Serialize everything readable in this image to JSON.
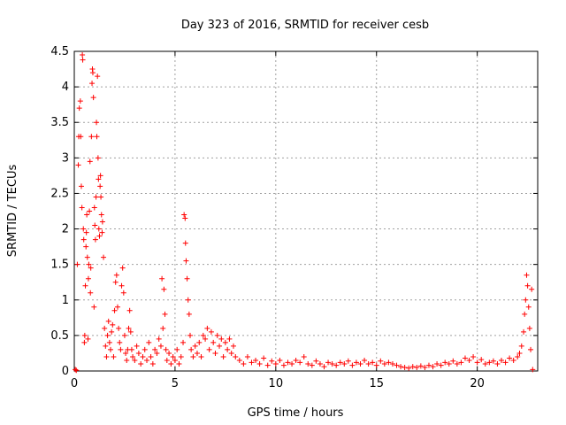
{
  "chart_data": {
    "type": "scatter",
    "title": "Day 323 of 2016, SRMTID for receiver cesb",
    "xlabel": "GPS time / hours",
    "ylabel": "SRMTID / TECUs",
    "xlim": [
      0,
      23
    ],
    "ylim": [
      0,
      4.5
    ],
    "xticks": [
      0,
      5,
      10,
      15,
      20
    ],
    "yticks": [
      0,
      0.5,
      1,
      1.5,
      2,
      2.5,
      3,
      3.5,
      4,
      4.5
    ],
    "grid": true,
    "marker": "+",
    "color": "#ff0000",
    "series": [
      {
        "name": "SRMTID",
        "points": [
          [
            0.05,
            0.02
          ],
          [
            0.1,
            0.01
          ],
          [
            0.15,
            1.5
          ],
          [
            0.2,
            2.9
          ],
          [
            0.22,
            3.3
          ],
          [
            0.25,
            3.7
          ],
          [
            0.3,
            3.8
          ],
          [
            0.32,
            3.3
          ],
          [
            0.35,
            2.6
          ],
          [
            0.38,
            2.3
          ],
          [
            0.4,
            4.45
          ],
          [
            0.42,
            4.38
          ],
          [
            0.45,
            2.0
          ],
          [
            0.47,
            1.85
          ],
          [
            0.5,
            0.4
          ],
          [
            0.52,
            0.5
          ],
          [
            0.55,
            1.2
          ],
          [
            0.58,
            1.75
          ],
          [
            0.6,
            1.95
          ],
          [
            0.62,
            2.2
          ],
          [
            0.65,
            1.6
          ],
          [
            0.68,
            0.45
          ],
          [
            0.7,
            1.3
          ],
          [
            0.72,
            1.5
          ],
          [
            0.75,
            2.25
          ],
          [
            0.78,
            2.95
          ],
          [
            0.8,
            1.1
          ],
          [
            0.82,
            1.45
          ],
          [
            0.85,
            3.3
          ],
          [
            0.88,
            4.05
          ],
          [
            0.9,
            4.25
          ],
          [
            0.92,
            4.2
          ],
          [
            0.95,
            3.85
          ],
          [
            0.98,
            0.9
          ],
          [
            1.0,
            2.3
          ],
          [
            1.02,
            2.05
          ],
          [
            1.05,
            1.85
          ],
          [
            1.08,
            2.45
          ],
          [
            1.1,
            3.5
          ],
          [
            1.12,
            3.3
          ],
          [
            1.15,
            4.15
          ],
          [
            1.18,
            3.0
          ],
          [
            1.2,
            2.7
          ],
          [
            1.22,
            2.0
          ],
          [
            1.25,
            1.9
          ],
          [
            1.28,
            2.6
          ],
          [
            1.3,
            2.75
          ],
          [
            1.32,
            2.45
          ],
          [
            1.35,
            2.2
          ],
          [
            1.38,
            1.95
          ],
          [
            1.4,
            2.1
          ],
          [
            1.45,
            1.6
          ],
          [
            1.5,
            0.6
          ],
          [
            1.55,
            0.35
          ],
          [
            1.6,
            0.2
          ],
          [
            1.65,
            0.5
          ],
          [
            1.7,
            0.7
          ],
          [
            1.75,
            0.4
          ],
          [
            1.8,
            0.3
          ],
          [
            1.85,
            0.55
          ],
          [
            1.9,
            0.65
          ],
          [
            1.95,
            0.2
          ],
          [
            2.0,
            0.85
          ],
          [
            2.05,
            1.25
          ],
          [
            2.1,
            1.35
          ],
          [
            2.15,
            0.9
          ],
          [
            2.2,
            0.6
          ],
          [
            2.25,
            0.4
          ],
          [
            2.3,
            0.3
          ],
          [
            2.35,
            1.2
          ],
          [
            2.4,
            1.45
          ],
          [
            2.45,
            1.1
          ],
          [
            2.5,
            0.5
          ],
          [
            2.55,
            0.25
          ],
          [
            2.6,
            0.15
          ],
          [
            2.65,
            0.3
          ],
          [
            2.7,
            0.6
          ],
          [
            2.75,
            0.85
          ],
          [
            2.8,
            0.55
          ],
          [
            2.85,
            0.3
          ],
          [
            2.9,
            0.2
          ],
          [
            3.0,
            0.15
          ],
          [
            3.1,
            0.35
          ],
          [
            3.2,
            0.25
          ],
          [
            3.3,
            0.1
          ],
          [
            3.4,
            0.2
          ],
          [
            3.5,
            0.3
          ],
          [
            3.6,
            0.15
          ],
          [
            3.7,
            0.4
          ],
          [
            3.8,
            0.2
          ],
          [
            3.9,
            0.1
          ],
          [
            4.0,
            0.3
          ],
          [
            4.1,
            0.25
          ],
          [
            4.2,
            0.45
          ],
          [
            4.3,
            0.35
          ],
          [
            4.35,
            1.3
          ],
          [
            4.4,
            0.6
          ],
          [
            4.45,
            1.15
          ],
          [
            4.5,
            0.8
          ],
          [
            4.55,
            0.3
          ],
          [
            4.6,
            0.15
          ],
          [
            4.7,
            0.25
          ],
          [
            4.8,
            0.1
          ],
          [
            4.9,
            0.2
          ],
          [
            5.0,
            0.15
          ],
          [
            5.1,
            0.3
          ],
          [
            5.2,
            0.1
          ],
          [
            5.3,
            0.2
          ],
          [
            5.4,
            0.4
          ],
          [
            5.45,
            2.2
          ],
          [
            5.5,
            2.15
          ],
          [
            5.52,
            1.8
          ],
          [
            5.55,
            1.55
          ],
          [
            5.6,
            1.3
          ],
          [
            5.65,
            1.0
          ],
          [
            5.7,
            0.8
          ],
          [
            5.75,
            0.5
          ],
          [
            5.8,
            0.3
          ],
          [
            5.9,
            0.2
          ],
          [
            6.0,
            0.35
          ],
          [
            6.1,
            0.25
          ],
          [
            6.2,
            0.4
          ],
          [
            6.3,
            0.2
          ],
          [
            6.4,
            0.5
          ],
          [
            6.5,
            0.45
          ],
          [
            6.6,
            0.6
          ],
          [
            6.7,
            0.3
          ],
          [
            6.8,
            0.55
          ],
          [
            6.9,
            0.4
          ],
          [
            7.0,
            0.25
          ],
          [
            7.1,
            0.5
          ],
          [
            7.2,
            0.35
          ],
          [
            7.3,
            0.45
          ],
          [
            7.4,
            0.2
          ],
          [
            7.5,
            0.4
          ],
          [
            7.6,
            0.3
          ],
          [
            7.7,
            0.45
          ],
          [
            7.8,
            0.25
          ],
          [
            7.9,
            0.35
          ],
          [
            8.0,
            0.2
          ],
          [
            8.2,
            0.15
          ],
          [
            8.4,
            0.1
          ],
          [
            8.6,
            0.2
          ],
          [
            8.8,
            0.12
          ],
          [
            9.0,
            0.15
          ],
          [
            9.2,
            0.1
          ],
          [
            9.4,
            0.18
          ],
          [
            9.6,
            0.08
          ],
          [
            9.8,
            0.14
          ],
          [
            10.0,
            0.1
          ],
          [
            10.2,
            0.15
          ],
          [
            10.4,
            0.08
          ],
          [
            10.6,
            0.12
          ],
          [
            10.8,
            0.1
          ],
          [
            11.0,
            0.15
          ],
          [
            11.2,
            0.12
          ],
          [
            11.4,
            0.2
          ],
          [
            11.6,
            0.1
          ],
          [
            11.8,
            0.08
          ],
          [
            12.0,
            0.14
          ],
          [
            12.2,
            0.1
          ],
          [
            12.4,
            0.06
          ],
          [
            12.6,
            0.12
          ],
          [
            12.8,
            0.1
          ],
          [
            13.0,
            0.08
          ],
          [
            13.2,
            0.12
          ],
          [
            13.4,
            0.1
          ],
          [
            13.6,
            0.14
          ],
          [
            13.8,
            0.08
          ],
          [
            14.0,
            0.12
          ],
          [
            14.2,
            0.1
          ],
          [
            14.4,
            0.15
          ],
          [
            14.6,
            0.1
          ],
          [
            14.8,
            0.12
          ],
          [
            15.0,
            0.08
          ],
          [
            15.2,
            0.14
          ],
          [
            15.4,
            0.1
          ],
          [
            15.6,
            0.12
          ],
          [
            15.8,
            0.1
          ],
          [
            16.0,
            0.08
          ],
          [
            16.2,
            0.06
          ],
          [
            16.4,
            0.05
          ],
          [
            16.6,
            0.04
          ],
          [
            16.8,
            0.06
          ],
          [
            17.0,
            0.05
          ],
          [
            17.2,
            0.07
          ],
          [
            17.4,
            0.05
          ],
          [
            17.6,
            0.08
          ],
          [
            17.8,
            0.06
          ],
          [
            18.0,
            0.1
          ],
          [
            18.2,
            0.08
          ],
          [
            18.4,
            0.12
          ],
          [
            18.6,
            0.1
          ],
          [
            18.8,
            0.14
          ],
          [
            19.0,
            0.1
          ],
          [
            19.2,
            0.12
          ],
          [
            19.4,
            0.18
          ],
          [
            19.6,
            0.15
          ],
          [
            19.8,
            0.2
          ],
          [
            20.0,
            0.12
          ],
          [
            20.2,
            0.16
          ],
          [
            20.4,
            0.1
          ],
          [
            20.6,
            0.12
          ],
          [
            20.8,
            0.14
          ],
          [
            21.0,
            0.1
          ],
          [
            21.2,
            0.15
          ],
          [
            21.4,
            0.12
          ],
          [
            21.6,
            0.18
          ],
          [
            21.8,
            0.15
          ],
          [
            22.0,
            0.2
          ],
          [
            22.1,
            0.25
          ],
          [
            22.2,
            0.35
          ],
          [
            22.3,
            0.55
          ],
          [
            22.35,
            0.8
          ],
          [
            22.4,
            1.0
          ],
          [
            22.45,
            1.35
          ],
          [
            22.5,
            1.2
          ],
          [
            22.55,
            0.9
          ],
          [
            22.6,
            0.6
          ],
          [
            22.65,
            0.3
          ],
          [
            22.7,
            1.15
          ],
          [
            22.75,
            0.02
          ]
        ]
      }
    ]
  }
}
